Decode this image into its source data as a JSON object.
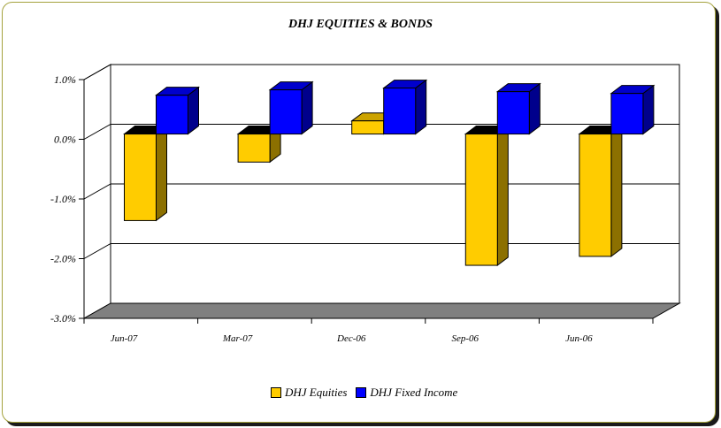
{
  "colors": {
    "equities": "#ffcc00",
    "fixed_income": "#0000ff",
    "floor": "#808080"
  },
  "chart_data": {
    "type": "bar",
    "title": "DHJ EQUITIES & BONDS",
    "categories": [
      "Jun-07",
      "Mar-07",
      "Dec-06",
      "Sep-06",
      "Jun-06"
    ],
    "series": [
      {
        "name": "DHJ Equities",
        "values": [
          -1.45,
          -0.47,
          0.22,
          -2.2,
          -2.05
        ]
      },
      {
        "name": "DHJ Fixed Income",
        "values": [
          0.65,
          0.74,
          0.77,
          0.71,
          0.68
        ]
      }
    ],
    "ylim": [
      -3.0,
      1.0
    ],
    "yticks": [
      "1.0%",
      "0.0%",
      "-1.0%",
      "-2.0%",
      "-3.0%"
    ],
    "grid": true,
    "legend_position": "bottom",
    "style": "3d-clustered-bar"
  }
}
